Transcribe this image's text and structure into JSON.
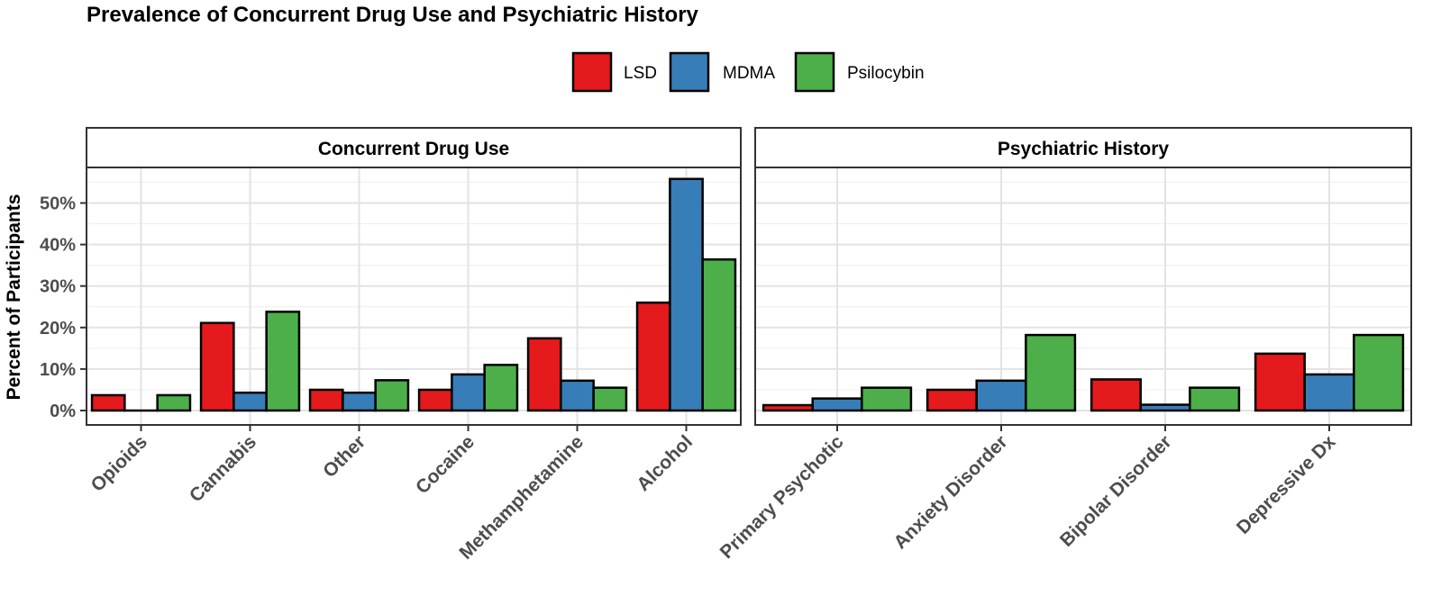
{
  "chart_data": {
    "type": "bar",
    "title": "Prevalence of Concurrent Drug Use and Psychiatric History",
    "ylabel": "Percent of Participants",
    "xlabel": "",
    "ylim": [
      0,
      60
    ],
    "yticks": [
      0,
      10,
      20,
      30,
      40,
      50
    ],
    "ytick_labels": [
      "0%",
      "10%",
      "20%",
      "30%",
      "40%",
      "50%"
    ],
    "grid": true,
    "legend": {
      "position": "top-center",
      "entries": [
        {
          "name": "LSD",
          "color": "#e41a1c"
        },
        {
          "name": "MDMA",
          "color": "#377eb8"
        },
        {
          "name": "Psilocybin",
          "color": "#4daf4a"
        }
      ]
    },
    "panels": [
      {
        "strip": "Concurrent Drug Use",
        "categories": [
          "Opioids",
          "Cannabis",
          "Other",
          "Cocaine",
          "Methamphetamine",
          "Alcohol"
        ],
        "series": [
          {
            "name": "LSD",
            "values": [
              3.7,
              21.1,
              5.0,
              5.0,
              17.4,
              26.0
            ]
          },
          {
            "name": "MDMA",
            "values": [
              0.0,
              4.3,
              4.3,
              8.7,
              7.2,
              55.8
            ]
          },
          {
            "name": "Psilocybin",
            "values": [
              3.7,
              23.8,
              7.3,
              11.0,
              5.5,
              36.4
            ]
          }
        ]
      },
      {
        "strip": "Psychiatric History",
        "categories": [
          "Primary Psychotic",
          "Anxiety Disorder",
          "Bipolar Disorder",
          "Depressive Dx"
        ],
        "series": [
          {
            "name": "LSD",
            "values": [
              1.3,
              5.0,
              7.5,
              13.7
            ]
          },
          {
            "name": "MDMA",
            "values": [
              2.9,
              7.2,
              1.4,
              8.7
            ]
          },
          {
            "name": "Psilocybin",
            "values": [
              5.5,
              18.2,
              5.5,
              18.2
            ]
          }
        ]
      }
    ]
  }
}
